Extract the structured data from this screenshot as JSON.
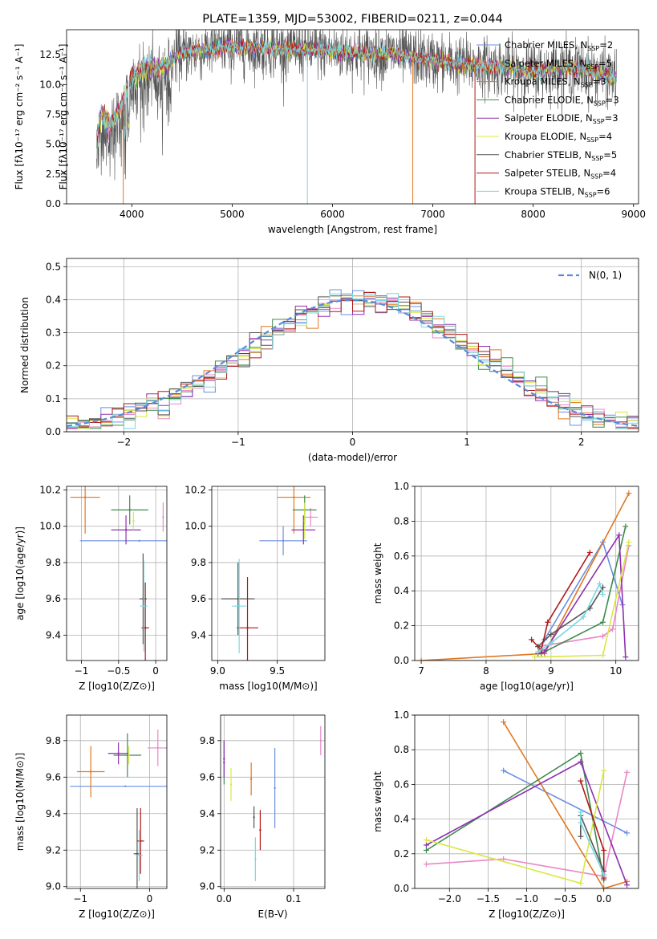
{
  "colors": [
    "#6a8fe0",
    "#e888c8",
    "#e07820",
    "#3d8a4a",
    "#9030b0",
    "#d8e840",
    "#555555",
    "#b01818",
    "#78d8e0"
  ],
  "chart_data": [
    {
      "id": "spectrum",
      "type": "line",
      "title": "PLATE=1359, MJD=53002, FIBERID=0211, z=0.044",
      "xlabel": "wavelength [Angstrom, rest frame]",
      "ylabel": "Flux [fλ10⁻¹⁷ erg cm⁻² s⁻¹ A⁻¹]",
      "xlim": [
        3350,
        9050
      ],
      "ylim": [
        0,
        14.6
      ],
      "xticks": [
        4000,
        5000,
        6000,
        7000,
        8000,
        9000
      ],
      "yticks": [
        0.0,
        2.5,
        5.0,
        7.5,
        10.0,
        12.5
      ],
      "x_range": [
        3650,
        8830
      ],
      "envelope": {
        "x": [
          3650,
          3700,
          3800,
          3900,
          4000,
          4100,
          4200,
          4300,
          4500,
          4800,
          5000,
          5200,
          5500,
          5800,
          6000,
          6300,
          6600,
          7000,
          7300,
          7600,
          8000,
          8300,
          8500,
          8800
        ],
        "y": [
          6.0,
          8.0,
          7.0,
          8.8,
          11.0,
          11.6,
          12.0,
          11.8,
          12.6,
          13.0,
          13.2,
          13.1,
          13.0,
          12.9,
          12.8,
          12.6,
          12.6,
          12.0,
          11.7,
          11.5,
          11.1,
          11.4,
          11.3,
          10.6
        ]
      },
      "legend": [
        {
          "name": "Chabrier MILES",
          "nssp": "2"
        },
        {
          "name": "Salpeter MILES",
          "nssp": "5"
        },
        {
          "name": "Kroupa MILES",
          "nssp": "3"
        },
        {
          "name": "Chabrier ELODIE",
          "nssp": "3"
        },
        {
          "name": "Salpeter ELODIE",
          "nssp": "3"
        },
        {
          "name": "Kroupa ELODIE",
          "nssp": "4"
        },
        {
          "name": "Chabrier STELIB",
          "nssp": "5"
        },
        {
          "name": "Salpeter STELIB",
          "nssp": "4"
        },
        {
          "name": "Kroupa STELIB",
          "nssp": "6"
        }
      ],
      "nssp_prefix": "N",
      "nssp_sub": "SSP"
    },
    {
      "id": "residuals",
      "type": "bar",
      "xlabel": "(data-model)/error",
      "ylabel": "Normed distribution",
      "xlim": [
        -2.5,
        2.5
      ],
      "ylim": [
        0,
        0.525
      ],
      "xticks": [
        -2,
        -1,
        0,
        1,
        2
      ],
      "yticks": [
        0.0,
        0.1,
        0.2,
        0.3,
        0.4,
        0.5
      ],
      "bin_width": 0.1,
      "legend": "N(0, 1)"
    },
    {
      "id": "age-vs-Z",
      "type": "scatter",
      "xlabel": "Z [log10(Z/Z⊙)]",
      "ylabel": "age  [log10(age/yr)]",
      "xlim": [
        -1.2,
        0.15
      ],
      "ylim": [
        9.26,
        10.22
      ],
      "xticks": [
        -1,
        -0.5,
        0
      ],
      "yticks": [
        9.4,
        9.6,
        9.8,
        10.0,
        10.2
      ],
      "points": [
        {
          "x": -0.22,
          "xerr": 0.8,
          "y": 9.92,
          "yerr": 0.0,
          "c": 0
        },
        {
          "x": 0.1,
          "xerr": 0.0,
          "y": 10.05,
          "yerr": 0.08,
          "c": 1
        },
        {
          "x": -0.95,
          "xerr": 0.2,
          "y": 10.16,
          "yerr": 0.2,
          "c": 2
        },
        {
          "x": -0.35,
          "xerr": 0.25,
          "y": 10.09,
          "yerr": 0.08,
          "c": 3
        },
        {
          "x": -0.4,
          "xerr": 0.2,
          "y": 9.98,
          "yerr": 0.08,
          "c": 4
        },
        {
          "x": -0.3,
          "xerr": 0.0,
          "y": 10.03,
          "yerr": 0.05,
          "c": 5
        },
        {
          "x": -0.17,
          "xerr": 0.05,
          "y": 9.6,
          "yerr": 0.25,
          "c": 6
        },
        {
          "x": -0.14,
          "xerr": 0.05,
          "y": 9.44,
          "yerr": 0.25,
          "c": 7
        },
        {
          "x": -0.16,
          "xerr": 0.05,
          "y": 9.56,
          "yerr": 0.25,
          "c": 8
        }
      ]
    },
    {
      "id": "age-vs-mass",
      "type": "scatter",
      "xlabel": "mass [log10(M/M⊙)]",
      "ylabel": "",
      "xlim": [
        8.95,
        9.9
      ],
      "ylim": [
        9.26,
        10.22
      ],
      "xticks": [
        9.0,
        9.5
      ],
      "yticks": [
        9.4,
        9.6,
        9.8,
        10.0,
        10.2
      ],
      "points": [
        {
          "x": 9.55,
          "xerr": 0.2,
          "y": 9.92,
          "yerr": 0.08,
          "c": 0
        },
        {
          "x": 9.78,
          "xerr": 0.06,
          "y": 10.05,
          "yerr": 0.05,
          "c": 1
        },
        {
          "x": 9.64,
          "xerr": 0.14,
          "y": 10.16,
          "yerr": 0.2,
          "c": 2
        },
        {
          "x": 9.73,
          "xerr": 0.1,
          "y": 10.09,
          "yerr": 0.08,
          "c": 3
        },
        {
          "x": 9.72,
          "xerr": 0.1,
          "y": 9.98,
          "yerr": 0.08,
          "c": 4
        },
        {
          "x": 9.73,
          "xerr": 0.0,
          "y": 10.03,
          "yerr": 0.1,
          "c": 5
        },
        {
          "x": 9.17,
          "xerr": 0.14,
          "y": 9.6,
          "yerr": 0.2,
          "c": 6
        },
        {
          "x": 9.25,
          "xerr": 0.09,
          "y": 9.44,
          "yerr": 0.28,
          "c": 7
        },
        {
          "x": 9.18,
          "xerr": 0.06,
          "y": 9.56,
          "yerr": 0.26,
          "c": 8
        }
      ]
    },
    {
      "id": "weight-vs-age",
      "type": "line",
      "xlabel": "age  [log10(age/yr)]",
      "ylabel": "mass weight",
      "xlim": [
        6.9,
        10.35
      ],
      "ylim": [
        0,
        1.0
      ],
      "xticks": [
        7,
        8,
        9,
        10
      ],
      "yticks": [
        0.0,
        0.2,
        0.4,
        0.6,
        0.8,
        1.0
      ],
      "series": [
        {
          "c": 0,
          "x": [
            8.9,
            9.8,
            10.1
          ],
          "y": [
            0.12,
            0.68,
            0.32
          ]
        },
        {
          "c": 1,
          "x": [
            8.8,
            9.8,
            9.95,
            10.2
          ],
          "y": [
            0.08,
            0.14,
            0.18,
            0.66
          ]
        },
        {
          "c": 2,
          "x": [
            7.0,
            8.9,
            10.2
          ],
          "y": [
            0.0,
            0.04,
            0.96
          ]
        },
        {
          "c": 3,
          "x": [
            8.85,
            9.8,
            10.15
          ],
          "y": [
            0.04,
            0.22,
            0.77
          ]
        },
        {
          "c": 4,
          "x": [
            8.8,
            8.9,
            10.05,
            10.15
          ],
          "y": [
            0.04,
            0.05,
            0.72,
            0.02
          ]
        },
        {
          "c": 5,
          "x": [
            8.75,
            9.8,
            10.2
          ],
          "y": [
            0.02,
            0.03,
            0.68
          ]
        },
        {
          "c": 6,
          "x": [
            8.8,
            9.0,
            9.6,
            9.8
          ],
          "y": [
            0.08,
            0.15,
            0.3,
            0.42
          ]
        },
        {
          "c": 7,
          "x": [
            8.7,
            8.85,
            8.95,
            9.6
          ],
          "y": [
            0.12,
            0.06,
            0.22,
            0.62
          ]
        },
        {
          "c": 8,
          "x": [
            8.8,
            9.0,
            9.5,
            9.75,
            9.8
          ],
          "y": [
            0.05,
            0.1,
            0.25,
            0.44,
            0.38
          ]
        }
      ]
    },
    {
      "id": "mass-vs-Z",
      "type": "scatter",
      "xlabel": "Z [log10(Z/Z⊙)]",
      "ylabel": "mass [log10(M/M⊙)]",
      "xlim": [
        -1.2,
        0.25
      ],
      "ylim": [
        8.99,
        9.94
      ],
      "xticks": [
        -1,
        0
      ],
      "yticks": [
        9.0,
        9.2,
        9.4,
        9.6,
        9.8
      ],
      "points": [
        {
          "x": -0.35,
          "xerr": 0.8,
          "y": 9.55,
          "yerr": 0.0,
          "c": 0
        },
        {
          "x": 0.12,
          "xerr": 0.15,
          "y": 9.76,
          "yerr": 0.1,
          "c": 1
        },
        {
          "x": -0.85,
          "xerr": 0.2,
          "y": 9.63,
          "yerr": 0.14,
          "c": 2
        },
        {
          "x": -0.32,
          "xerr": 0.2,
          "y": 9.72,
          "yerr": 0.12,
          "c": 3
        },
        {
          "x": -0.45,
          "xerr": 0.15,
          "y": 9.73,
          "yerr": 0.06,
          "c": 4
        },
        {
          "x": -0.3,
          "xerr": 0.0,
          "y": 9.72,
          "yerr": 0.05,
          "c": 5
        },
        {
          "x": -0.18,
          "xerr": 0.05,
          "y": 9.18,
          "yerr": 0.25,
          "c": 6
        },
        {
          "x": -0.13,
          "xerr": 0.05,
          "y": 9.25,
          "yerr": 0.18,
          "c": 7
        },
        {
          "x": -0.15,
          "xerr": 0.05,
          "y": 9.17,
          "yerr": 0.14,
          "c": 8
        }
      ]
    },
    {
      "id": "mass-vs-ebv",
      "type": "scatter",
      "xlabel": "E(B-V)",
      "ylabel": "",
      "xlim": [
        -0.005,
        0.145
      ],
      "ylim": [
        8.99,
        9.94
      ],
      "xticks": [
        0.0,
        0.1
      ],
      "yticks": [
        9.0,
        9.2,
        9.4,
        9.6,
        9.8
      ],
      "points": [
        {
          "x": 0.073,
          "y": 9.54,
          "yerr": 0.22,
          "c": 0
        },
        {
          "x": 0.139,
          "y": 9.8,
          "yerr": 0.08,
          "c": 1
        },
        {
          "x": 0.039,
          "y": 9.59,
          "yerr": 0.09,
          "c": 2
        },
        {
          "x": 0.0,
          "y": 9.68,
          "yerr": 0.12,
          "c": 3
        },
        {
          "x": 0.0,
          "y": 9.7,
          "yerr": 0.1,
          "c": 4
        },
        {
          "x": 0.01,
          "y": 9.56,
          "yerr": 0.09,
          "c": 5
        },
        {
          "x": 0.043,
          "y": 9.38,
          "yerr": 0.06,
          "c": 6
        },
        {
          "x": 0.052,
          "y": 9.31,
          "yerr": 0.11,
          "c": 7
        },
        {
          "x": 0.045,
          "y": 9.15,
          "yerr": 0.12,
          "c": 8
        }
      ]
    },
    {
      "id": "weight-vs-Z",
      "type": "line",
      "xlabel": "Z [log10(Z/Z⊙)]",
      "ylabel": "mass weight",
      "xlim": [
        -2.45,
        0.45
      ],
      "ylim": [
        0,
        1.0
      ],
      "xticks": [
        -2.0,
        -1.5,
        -1.0,
        -0.5,
        0.0
      ],
      "yticks": [
        0.0,
        0.2,
        0.4,
        0.6,
        0.8,
        1.0
      ],
      "series": [
        {
          "c": 0,
          "x": [
            -1.3,
            0.3
          ],
          "y": [
            0.68,
            0.32
          ]
        },
        {
          "c": 1,
          "x": [
            -2.3,
            -1.3,
            0.0,
            0.3
          ],
          "y": [
            0.14,
            0.17,
            0.07,
            0.67
          ]
        },
        {
          "c": 2,
          "x": [
            -1.3,
            0.0,
            0.3
          ],
          "y": [
            0.96,
            0.0,
            0.04
          ]
        },
        {
          "c": 3,
          "x": [
            -2.3,
            -0.3,
            0.0
          ],
          "y": [
            0.22,
            0.78,
            0.05
          ]
        },
        {
          "c": 4,
          "x": [
            -2.3,
            -0.3,
            0.3
          ],
          "y": [
            0.25,
            0.73,
            0.02
          ]
        },
        {
          "c": 5,
          "x": [
            -2.3,
            -0.3,
            0.0
          ],
          "y": [
            0.28,
            0.03,
            0.68
          ]
        },
        {
          "c": 6,
          "x": [
            -0.3,
            -0.3,
            0.0
          ],
          "y": [
            0.3,
            0.42,
            0.1
          ]
        },
        {
          "c": 7,
          "x": [
            -0.3,
            0.0,
            0.0
          ],
          "y": [
            0.62,
            0.22,
            0.06
          ]
        },
        {
          "c": 8,
          "x": [
            -0.3,
            -0.3,
            0.0
          ],
          "y": [
            0.44,
            0.38,
            0.08
          ]
        }
      ]
    }
  ]
}
